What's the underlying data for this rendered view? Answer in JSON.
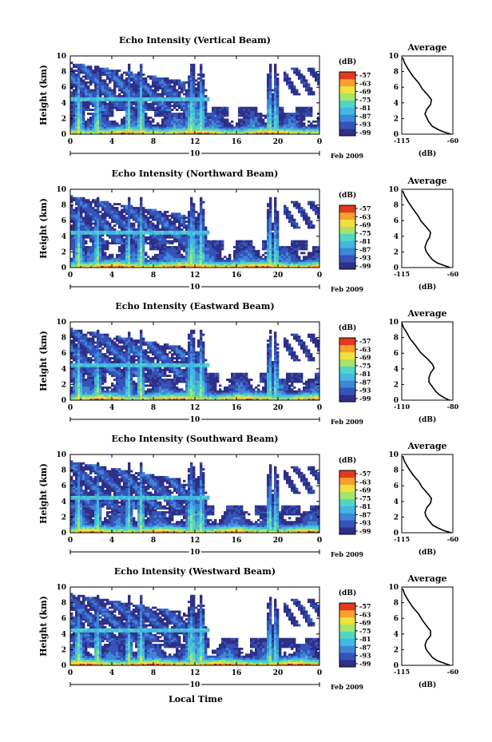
{
  "chart_data": {
    "type": "heatmap",
    "y_label": "Height (km)",
    "x_label": "Local Time",
    "date_label": "Feb 2009",
    "day_label": "10",
    "x_ticks": [
      "0",
      "4",
      "8",
      "12",
      "16",
      "20",
      "0"
    ],
    "y_ticks": [
      "0",
      "2",
      "4",
      "6",
      "8",
      "10"
    ],
    "xlim": [
      0,
      24
    ],
    "ylim": [
      0,
      10
    ],
    "colorbar": {
      "unit": "(dB)",
      "ticks": [
        "-57",
        "-63",
        "-69",
        "-75",
        "-81",
        "-87",
        "-93",
        "-99"
      ],
      "colors": [
        "#2e2f86",
        "#3553b8",
        "#3f86d8",
        "#43b7e2",
        "#52d6c4",
        "#a6e36b",
        "#f2e03c",
        "#f7a02e",
        "#e23a1e"
      ]
    },
    "average_title": "Average",
    "average_unit": "(dB)",
    "panels": [
      {
        "title": "Echo Intensity (Vertical Beam)",
        "avg_xticks": [
          "-115",
          "-60"
        ],
        "avg_xlim": [
          -115,
          -60
        ],
        "average_profile": [
          [
            -62,
            0
          ],
          [
            -70,
            0.3
          ],
          [
            -76,
            0.6
          ],
          [
            -82,
            1.0
          ],
          [
            -86,
            1.6
          ],
          [
            -88,
            2.1
          ],
          [
            -90,
            2.6
          ],
          [
            -88,
            3.2
          ],
          [
            -84,
            3.8
          ],
          [
            -83,
            4.4
          ],
          [
            -87,
            5.0
          ],
          [
            -93,
            5.8
          ],
          [
            -97,
            6.6
          ],
          [
            -103,
            7.4
          ],
          [
            -108,
            8.3
          ],
          [
            -112,
            9.1
          ],
          [
            -114,
            9.8
          ]
        ]
      },
      {
        "title": "Echo Intensity (Northward Beam)",
        "avg_xticks": [
          "-115",
          "-60"
        ],
        "avg_xlim": [
          -115,
          -60
        ],
        "average_profile": [
          [
            -63,
            0
          ],
          [
            -70,
            0.3
          ],
          [
            -77,
            0.6
          ],
          [
            -82,
            1.0
          ],
          [
            -86,
            1.6
          ],
          [
            -89,
            2.1
          ],
          [
            -90,
            2.6
          ],
          [
            -88,
            3.3
          ],
          [
            -85,
            3.9
          ],
          [
            -84,
            4.5
          ],
          [
            -88,
            5.1
          ],
          [
            -94,
            5.9
          ],
          [
            -98,
            6.7
          ],
          [
            -103,
            7.5
          ],
          [
            -108,
            8.4
          ],
          [
            -112,
            9.2
          ],
          [
            -114,
            9.8
          ]
        ]
      },
      {
        "title": "Echo Intensity (Eastward Beam)",
        "avg_xticks": [
          "-110",
          "-80"
        ],
        "avg_xlim": [
          -110,
          -80
        ],
        "average_profile": [
          [
            -82,
            0
          ],
          [
            -85,
            0.3
          ],
          [
            -88,
            0.7
          ],
          [
            -90,
            1.1
          ],
          [
            -92,
            1.7
          ],
          [
            -94,
            2.3
          ],
          [
            -94,
            2.9
          ],
          [
            -93,
            3.5
          ],
          [
            -91,
            4.1
          ],
          [
            -92,
            4.6
          ],
          [
            -95,
            5.3
          ],
          [
            -99,
            6.1
          ],
          [
            -102,
            7.0
          ],
          [
            -105,
            7.8
          ],
          [
            -107,
            8.6
          ],
          [
            -109,
            9.3
          ],
          [
            -110,
            9.9
          ]
        ]
      },
      {
        "title": "Echo Intensity (Southward Beam)",
        "avg_xticks": [
          "-115",
          "-60"
        ],
        "avg_xlim": [
          -115,
          -60
        ],
        "average_profile": [
          [
            -62,
            0
          ],
          [
            -70,
            0.3
          ],
          [
            -76,
            0.6
          ],
          [
            -82,
            1.0
          ],
          [
            -86,
            1.6
          ],
          [
            -89,
            2.1
          ],
          [
            -90,
            2.6
          ],
          [
            -88,
            3.2
          ],
          [
            -84,
            3.8
          ],
          [
            -83,
            4.4
          ],
          [
            -87,
            5.0
          ],
          [
            -93,
            5.8
          ],
          [
            -97,
            6.6
          ],
          [
            -103,
            7.4
          ],
          [
            -108,
            8.3
          ],
          [
            -112,
            9.1
          ],
          [
            -114,
            9.8
          ]
        ]
      },
      {
        "title": "Echo Intensity (Westward Beam)",
        "avg_xticks": [
          "-115",
          "-60"
        ],
        "avg_xlim": [
          -115,
          -60
        ],
        "average_profile": [
          [
            -63,
            0
          ],
          [
            -70,
            0.3
          ],
          [
            -77,
            0.6
          ],
          [
            -82,
            1.0
          ],
          [
            -86,
            1.6
          ],
          [
            -89,
            2.1
          ],
          [
            -90,
            2.6
          ],
          [
            -88,
            3.2
          ],
          [
            -84,
            3.8
          ],
          [
            -84,
            4.4
          ],
          [
            -88,
            5.0
          ],
          [
            -93,
            5.8
          ],
          [
            -97,
            6.6
          ],
          [
            -103,
            7.4
          ],
          [
            -108,
            8.3
          ],
          [
            -112,
            9.1
          ],
          [
            -114,
            9.8
          ]
        ]
      }
    ]
  }
}
